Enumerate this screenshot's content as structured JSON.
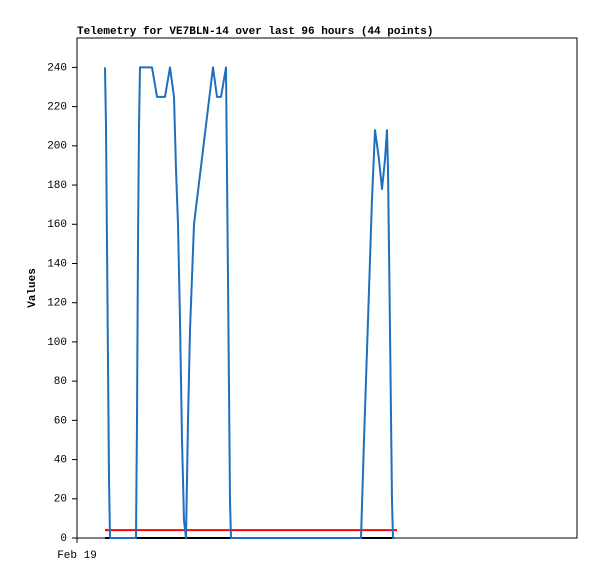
{
  "chart_data": {
    "type": "line",
    "title": "Telemetry for VE7BLN-14 over last 96 hours (44 points)",
    "y_label": "Values",
    "xlim": [
      0,
      100
    ],
    "xticks": [
      {
        "value": 0,
        "label": "Feb 19"
      }
    ],
    "ylim": [
      0,
      255
    ],
    "yticks": [
      0,
      20,
      40,
      60,
      80,
      100,
      120,
      140,
      160,
      180,
      200,
      220,
      240
    ],
    "grid": false,
    "series": [
      {
        "color": "#000000",
        "x": [
          5.6,
          63.6
        ],
        "values": [
          0,
          0
        ]
      },
      {
        "color": "#ff0000",
        "x": [
          5.6,
          64
        ],
        "values": [
          4,
          4
        ]
      },
      {
        "color": "#1f6fbf",
        "x": [
          5.6,
          5.8,
          6,
          6.2,
          6.4,
          6.6,
          11.8,
          12,
          12.2,
          12.4,
          12.6,
          15,
          16,
          17.6,
          18.6,
          19.4,
          19.8,
          20.2,
          20.6,
          21,
          21.4,
          21.8,
          22.2,
          22.6,
          23.4,
          27.2,
          28,
          28.8,
          29.8,
          30.2,
          30.6,
          30.8,
          56.8,
          57.4,
          58.2,
          59,
          59.6,
          60.4,
          61,
          61.6,
          62,
          62.2,
          62.6,
          63,
          63.2,
          63.6
        ],
        "values": [
          240,
          210,
          150,
          90,
          30,
          0,
          0,
          60,
          150,
          210,
          240,
          240,
          225,
          225,
          240,
          225,
          188,
          160,
          111,
          50,
          9,
          0,
          60,
          106,
          160,
          240,
          225,
          225,
          240,
          132,
          19,
          0,
          0,
          50,
          111,
          173,
          208,
          193,
          178,
          193,
          208,
          188,
          106,
          19,
          0,
          0
        ]
      }
    ]
  }
}
